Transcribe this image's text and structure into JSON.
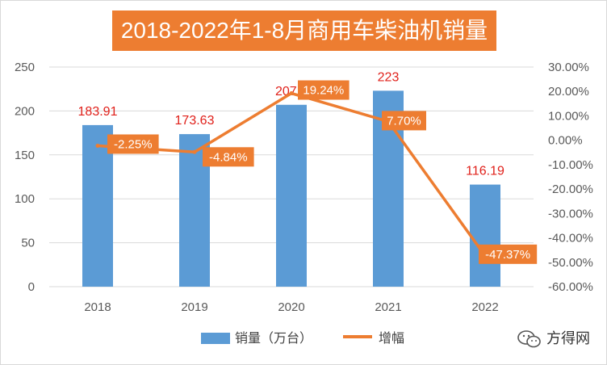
{
  "chart_data": {
    "type": "bar",
    "title": "2018-2022年1-8月商用车柴油机销量",
    "categories": [
      "2018",
      "2019",
      "2020",
      "2021",
      "2022"
    ],
    "series": [
      {
        "name": "销量（万台）",
        "type": "bar",
        "axis": "left",
        "values": [
          183.91,
          173.63,
          207.0,
          223,
          116.19
        ],
        "labels": [
          "183.91",
          "173.63",
          "207.0",
          "223",
          "116.19"
        ],
        "color": "#5b9bd5"
      },
      {
        "name": "增幅",
        "type": "line",
        "axis": "right",
        "values": [
          -2.25,
          -4.84,
          19.24,
          7.7,
          -47.37
        ],
        "labels": [
          "-2.25%",
          "-4.84%",
          "19.24%",
          "7.70%",
          "-47.37%"
        ],
        "color": "#ed7d31"
      }
    ],
    "y_left": {
      "min": 0,
      "max": 250,
      "step": 50,
      "ticks": [
        "0",
        "50",
        "100",
        "150",
        "200",
        "250"
      ]
    },
    "y_right": {
      "min": -60,
      "max": 30,
      "step": 10,
      "ticks": [
        "-60.00%",
        "-50.00%",
        "-40.00%",
        "-30.00%",
        "-20.00%",
        "-10.00%",
        "0.00%",
        "10.00%",
        "20.00%",
        "30.00%"
      ]
    },
    "grid": true,
    "legend_position": "bottom"
  },
  "watermark": "方得网"
}
